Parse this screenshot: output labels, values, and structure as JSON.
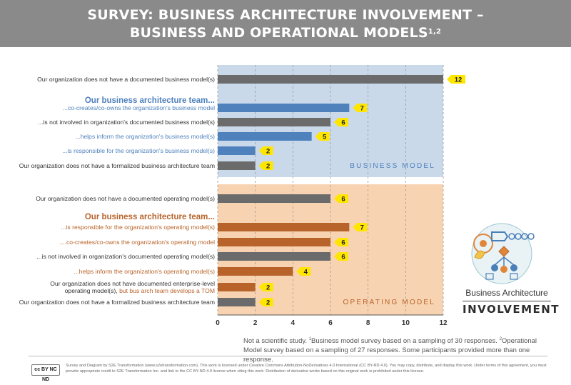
{
  "title": {
    "line1": "SURVEY: BUSINESS ARCHITECTURE INVOLVEMENT –",
    "line2": "BUSINESS AND OPERATIONAL MODELS",
    "superscript": "1,2"
  },
  "chart_data": {
    "type": "bar",
    "orientation": "horizontal",
    "xlim": [
      0,
      12
    ],
    "xticks": [
      "0",
      "2",
      "4",
      "6",
      "8",
      "10",
      "12"
    ],
    "sections": [
      {
        "name": "BUSINESS MODEL",
        "background": "#c9d9ea"
      },
      {
        "name": "OPERATING MODEL",
        "background": "#f8d3b1"
      }
    ],
    "rows": [
      {
        "kind": "bar",
        "section": 0,
        "label": "Our organization does not have a documented business model(s)",
        "value": 12,
        "color": "#6b6b6b",
        "labelColor": "#333333"
      },
      {
        "kind": "heading",
        "section": 0,
        "label": "Our business architecture team...",
        "labelColor": "#4f81bd"
      },
      {
        "kind": "bar",
        "section": 0,
        "label": "...co-creates/co-owns the organization's business model",
        "value": 7,
        "color": "#4f81bd",
        "labelColor": "#4f81bd"
      },
      {
        "kind": "bar",
        "section": 0,
        "label": "...is not involved in organization's documented business model(s)",
        "value": 6,
        "color": "#6b6b6b",
        "labelColor": "#333333"
      },
      {
        "kind": "bar",
        "section": 0,
        "label": "...helps inform the organization's business model(s)",
        "value": 5,
        "color": "#4f81bd",
        "labelColor": "#4f81bd"
      },
      {
        "kind": "bar",
        "section": 0,
        "label": "...is responsible for the organization's business model(s)",
        "value": 2,
        "color": "#4f81bd",
        "labelColor": "#4f81bd"
      },
      {
        "kind": "bar",
        "section": 0,
        "label": "Our organization does not have a formalized business architecture team",
        "value": 2,
        "color": "#6b6b6b",
        "labelColor": "#333333"
      },
      {
        "kind": "bar",
        "section": 1,
        "label": "Our organization does not have a documented operating model(s)",
        "value": 6,
        "color": "#6b6b6b",
        "labelColor": "#333333"
      },
      {
        "kind": "heading",
        "section": 1,
        "label": "Our business architecture team...",
        "labelColor": "#b8632a"
      },
      {
        "kind": "bar",
        "section": 1,
        "label": "...is responsible for the organization's operating model(s)",
        "value": 7,
        "color": "#b8632a",
        "labelColor": "#b8632a"
      },
      {
        "kind": "bar",
        "section": 1,
        "label": "....co-creates/co-owns the organization's operating model",
        "value": 6,
        "color": "#b8632a",
        "labelColor": "#b8632a"
      },
      {
        "kind": "bar",
        "section": 1,
        "label": "...is not involved in organization's documented operating model(s)",
        "value": 6,
        "color": "#6b6b6b",
        "labelColor": "#333333"
      },
      {
        "kind": "bar",
        "section": 1,
        "label": "...helps inform the organization's operating model(s)",
        "value": 4,
        "color": "#b8632a",
        "labelColor": "#b8632a"
      },
      {
        "kind": "bar",
        "section": 1,
        "label": "Our organization does not have documented enterprise-level",
        "label2": "operating model(s),",
        "label2b": " but bus arch team develops a TOM",
        "label2bColor": "#b8632a",
        "value": 2,
        "color": "#b8632a",
        "labelColor": "#333333"
      },
      {
        "kind": "bar",
        "section": 1,
        "label": "Our organization does not have a formalized business architecture team",
        "value": 2,
        "color": "#6b6b6b",
        "labelColor": "#333333"
      }
    ],
    "callout_color": "#ffe600"
  },
  "legend": {
    "name": "Business Architecture",
    "word": "INVOLVEMENT"
  },
  "footnote": {
    "lead": "Not a scientific study. ",
    "sup1": "1",
    "text1": "Business model survey based on a sampling of 30 responses. ",
    "sup2": "2",
    "text2": "Operational Model survey based on a sampling of 27 responses. Some participants provided more than one response."
  },
  "footer": {
    "badge": "cc BY NC ND",
    "credits": "Survey and Diagram by S2E Transformation (www.s2etransformation.com). This work is licensed under Creative Commons Attribution-NoDerivatives 4.0 International (CC BY-ND 4.0). You may copy, distribute, and display this work. Under terms of this agreement, you must provide appropriate credit to S2E Transformation Inc. and link to the CC BY-ND 4.0 license when citing this work. Distribution of derivative works based on this original work is prohibited under this license."
  }
}
